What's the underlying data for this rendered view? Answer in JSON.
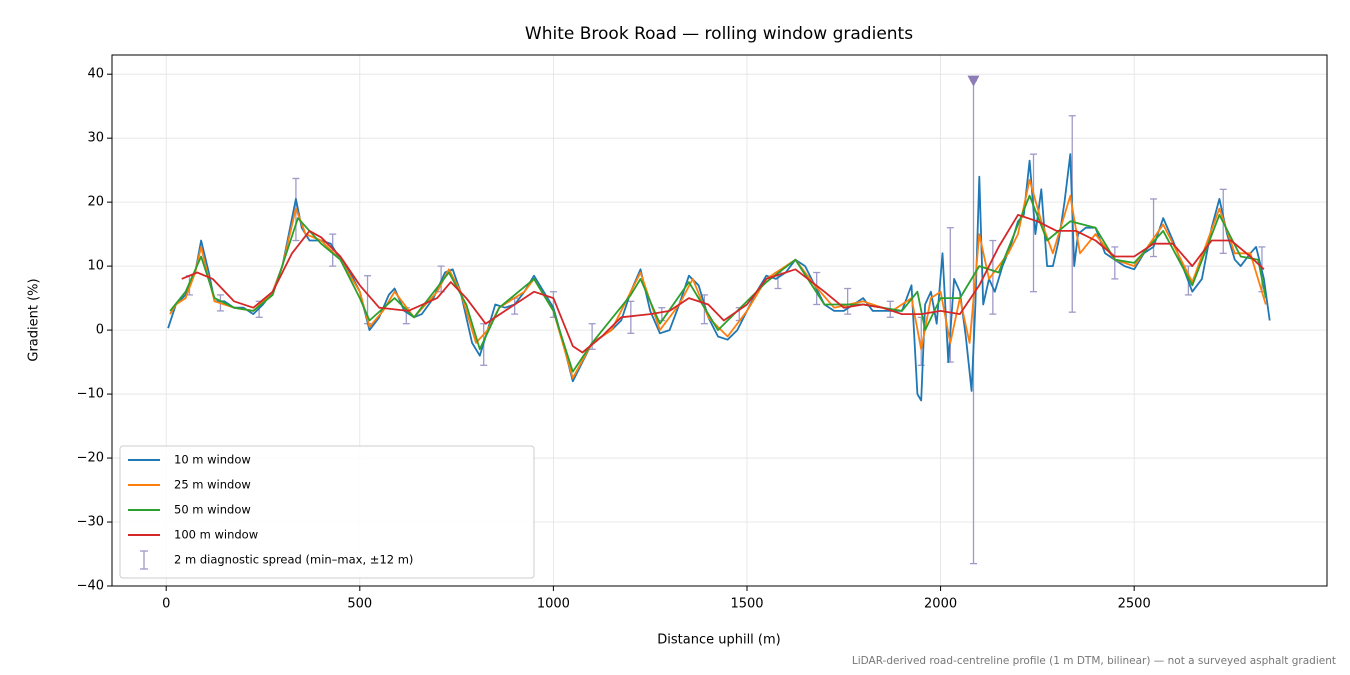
{
  "chart_data": {
    "type": "line",
    "title": "White Brook Road — rolling window gradients",
    "x_label": "Distance uphill (m)",
    "y_label": "Gradient (%)",
    "footnote": "LiDAR-derived road-centreline profile (1 m DTM, bilinear) — not a surveyed asphalt gradient",
    "xlim": [
      -140,
      2998
    ],
    "ylim": [
      -40,
      43
    ],
    "xticks": [
      0,
      500,
      1000,
      1500,
      2000,
      2500
    ],
    "yticks": [
      {
        "value": -40,
        "label": "−40"
      },
      {
        "value": -30,
        "label": "−30"
      },
      {
        "value": -20,
        "label": "−20"
      },
      {
        "value": -10,
        "label": "−10"
      },
      0,
      10,
      20,
      30,
      40
    ],
    "grid": true,
    "legend": "lower left",
    "series": [
      {
        "name": "10 m window",
        "color": "#1f77b4",
        "x": [
          5,
          25,
          50,
          75,
          90,
          110,
          125,
          150,
          175,
          200,
          225,
          250,
          275,
          300,
          320,
          335,
          350,
          370,
          400,
          425,
          450,
          475,
          500,
          525,
          550,
          575,
          590,
          615,
          640,
          660,
          690,
          720,
          740,
          760,
          790,
          810,
          830,
          850,
          875,
          900,
          925,
          950,
          975,
          1000,
          1025,
          1050,
          1075,
          1100,
          1125,
          1150,
          1175,
          1200,
          1225,
          1250,
          1275,
          1300,
          1325,
          1350,
          1375,
          1400,
          1425,
          1450,
          1475,
          1500,
          1525,
          1550,
          1575,
          1600,
          1625,
          1650,
          1675,
          1700,
          1725,
          1750,
          1775,
          1800,
          1825,
          1850,
          1875,
          1900,
          1925,
          1940,
          1950,
          1960,
          1975,
          1990,
          2005,
          2020,
          2035,
          2050,
          2065,
          2080,
          2090,
          2100,
          2110,
          2125,
          2140,
          2160,
          2180,
          2200,
          2215,
          2230,
          2245,
          2260,
          2275,
          2290,
          2305,
          2320,
          2335,
          2345,
          2355,
          2375,
          2400,
          2425,
          2450,
          2475,
          2500,
          2525,
          2550,
          2575,
          2600,
          2625,
          2650,
          2675,
          2700,
          2720,
          2740,
          2760,
          2775,
          2800,
          2815,
          2835,
          2850
        ],
        "values": [
          0.3,
          4,
          5.5,
          9,
          14,
          9,
          4.5,
          4.5,
          3.5,
          3.5,
          2.5,
          4,
          6,
          10,
          16,
          20.5,
          16,
          14,
          14,
          13.5,
          11,
          9,
          6,
          0,
          2,
          5.5,
          6.5,
          3,
          2,
          2.5,
          5,
          9,
          9.5,
          6,
          -2,
          -4,
          0,
          4,
          3.5,
          4,
          6,
          8.5,
          6,
          3.5,
          -2,
          -8,
          -5,
          -2,
          -1,
          0,
          1.5,
          6,
          9.5,
          3,
          -0.5,
          0,
          4,
          8.5,
          7,
          2,
          -1,
          -1.5,
          0,
          3,
          6,
          8.5,
          8,
          9,
          11,
          10,
          7,
          4,
          3,
          3,
          4,
          5,
          3,
          3,
          3,
          3,
          7,
          -10,
          -11,
          4,
          6,
          1,
          12,
          -5,
          8,
          6,
          -1,
          -9.5,
          4,
          24,
          4,
          8,
          6,
          10,
          13,
          17,
          18,
          26.5,
          15,
          22,
          10,
          10,
          14,
          20,
          27.5,
          10,
          15,
          16,
          16,
          12,
          11,
          10,
          9.5,
          12,
          13,
          17.5,
          14,
          10,
          6,
          8,
          16,
          20.5,
          15,
          11,
          10,
          12,
          13,
          8,
          1.5
        ]
      },
      {
        "name": "25 m window",
        "color": "#ff7f0e",
        "x": [
          10,
          25,
          50,
          75,
          90,
          110,
          125,
          175,
          225,
          275,
          300,
          335,
          360,
          400,
          450,
          500,
          525,
          560,
          590,
          640,
          700,
          730,
          760,
          800,
          830,
          860,
          925,
          950,
          1000,
          1050,
          1100,
          1150,
          1200,
          1225,
          1275,
          1325,
          1360,
          1400,
          1450,
          1500,
          1550,
          1625,
          1675,
          1725,
          1800,
          1875,
          1925,
          1950,
          1975,
          2000,
          2025,
          2050,
          2075,
          2100,
          2125,
          2175,
          2200,
          2230,
          2260,
          2290,
          2335,
          2360,
          2400,
          2450,
          2500,
          2575,
          2650,
          2720,
          2760,
          2800,
          2840
        ],
        "values": [
          2.5,
          4,
          5,
          9,
          13,
          8,
          4.5,
          3.5,
          3,
          6,
          10,
          19,
          15,
          14,
          11,
          6,
          0.5,
          3,
          6,
          2,
          6,
          9.5,
          6,
          -2,
          0,
          3.5,
          6,
          8,
          3,
          -7.5,
          -2,
          0,
          6,
          9,
          0,
          4,
          8,
          2,
          -1,
          3,
          8,
          11,
          7,
          3.5,
          4.5,
          3,
          5,
          -3,
          5,
          6,
          -2,
          5,
          -2,
          15,
          8,
          12,
          15,
          23.5,
          17,
          12,
          21,
          12,
          15,
          11,
          10,
          16.5,
          7.5,
          19,
          12,
          12,
          4
        ]
      },
      {
        "name": "50 m window",
        "color": "#2ca02c",
        "x": [
          10,
          50,
          90,
          125,
          175,
          225,
          275,
          340,
          400,
          450,
          500,
          525,
          590,
          640,
          730,
          775,
          810,
          860,
          950,
          1000,
          1050,
          1100,
          1200,
          1225,
          1275,
          1350,
          1425,
          1550,
          1625,
          1700,
          1800,
          1900,
          1940,
          1960,
          2000,
          2050,
          2100,
          2150,
          2230,
          2275,
          2335,
          2400,
          2450,
          2500,
          2575,
          2650,
          2720,
          2775,
          2820,
          2840
        ],
        "values": [
          3,
          6,
          11.5,
          5,
          3.5,
          3,
          5.5,
          17.5,
          13.5,
          11,
          5,
          1.5,
          5,
          2,
          9,
          4,
          -3,
          3.5,
          8,
          3,
          -6.5,
          -2,
          5.5,
          8,
          1,
          7.5,
          0,
          7.5,
          11,
          4,
          4,
          3,
          6,
          0,
          5,
          5,
          10,
          9,
          21,
          14,
          17,
          16,
          11,
          10.5,
          15.5,
          7,
          18,
          11.5,
          11,
          5
        ]
      },
      {
        "name": "100 m window",
        "color": "#d62728",
        "x": [
          40,
          80,
          120,
          175,
          225,
          275,
          325,
          370,
          400,
          450,
          500,
          550,
          625,
          700,
          735,
          775,
          825,
          875,
          950,
          1000,
          1050,
          1075,
          1125,
          1175,
          1250,
          1300,
          1350,
          1400,
          1440,
          1500,
          1550,
          1625,
          1700,
          1750,
          1800,
          1850,
          1900,
          1950,
          2000,
          2050,
          2100,
          2150,
          2200,
          2250,
          2300,
          2350,
          2400,
          2450,
          2500,
          2550,
          2600,
          2650,
          2700,
          2750,
          2800,
          2835
        ],
        "values": [
          8,
          9,
          8,
          4.5,
          3.5,
          6,
          12,
          15.5,
          14.5,
          11.5,
          7,
          3.5,
          3,
          5,
          7.5,
          5,
          1,
          3,
          6,
          5,
          -2.5,
          -3.5,
          -1,
          2,
          2.5,
          3,
          5,
          4,
          1.5,
          4,
          8,
          9.5,
          6,
          3.5,
          4,
          3.5,
          2.5,
          2.5,
          3,
          2.5,
          7,
          13,
          18,
          17,
          15.5,
          15.5,
          14,
          11.5,
          11.5,
          13.5,
          13.5,
          10,
          14,
          14,
          11.5,
          9.5
        ]
      }
    ],
    "errorbars": {
      "name": "2 m diagnostic spread (min–max, ±12 m)",
      "color": "#9e9ac8",
      "x": [
        60,
        140,
        240,
        335,
        430,
        520,
        620,
        710,
        820,
        900,
        1000,
        1100,
        1200,
        1280,
        1390,
        1480,
        1580,
        1680,
        1760,
        1870,
        1950,
        2025,
        2085,
        2135,
        2240,
        2340,
        2450,
        2550,
        2640,
        2730,
        2830
      ],
      "low": [
        5.5,
        3,
        2,
        14,
        10,
        1,
        1,
        6,
        -5.5,
        2.5,
        2,
        -3,
        -0.5,
        1.5,
        1,
        1.5,
        6.5,
        4,
        2.5,
        2,
        -5.5,
        -5,
        -36.5,
        2.5,
        6,
        2.8,
        8,
        11.5,
        5.5,
        12,
        6
      ],
      "high": [
        8.5,
        5.5,
        4.5,
        23.7,
        15,
        8.5,
        3.5,
        10,
        1,
        5,
        6,
        1,
        4.5,
        3.5,
        5.5,
        3.5,
        9,
        9,
        6.5,
        4.5,
        2,
        16,
        39,
        14,
        27.5,
        33.5,
        13,
        20.5,
        10,
        22,
        13
      ]
    },
    "clip_markers": {
      "color": "#8e7cb6",
      "x": [
        2085
      ],
      "y": [
        39
      ]
    }
  }
}
